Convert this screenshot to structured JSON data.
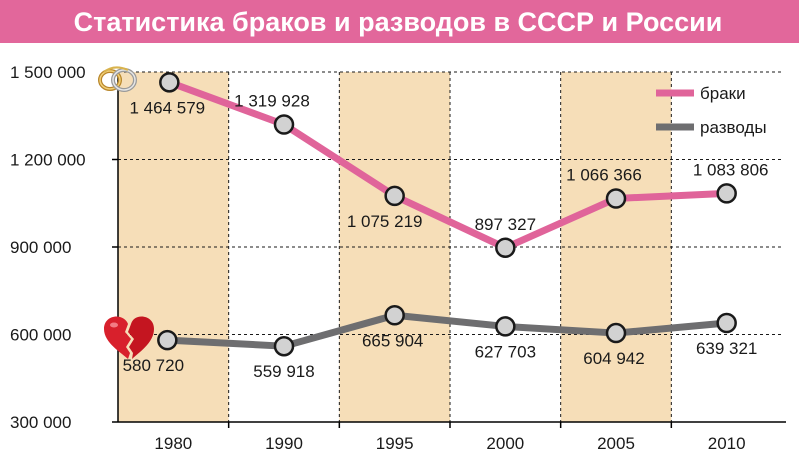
{
  "chart_data": {
    "type": "line",
    "title": "Статистика браков и разводов в СССР и России",
    "categories": [
      "1980",
      "1990",
      "1995",
      "2000",
      "2005",
      "2010"
    ],
    "yticks": [
      "1 500 000",
      "1 200 000",
      "900 000",
      "600 000",
      "300 000"
    ],
    "ytick_values": [
      1500000,
      1200000,
      900000,
      600000,
      300000
    ],
    "ylim": [
      300000,
      1500000
    ],
    "grid": true,
    "legend_position": "top-right",
    "series": [
      {
        "name": "браки",
        "color": "#e0649a",
        "values": [
          1464579,
          1319928,
          1075219,
          897327,
          1066366,
          1083806
        ],
        "labels": [
          "1 464 579",
          "1 319 928",
          "1 075 219",
          "897 327",
          "1 066 366",
          "1 083 806"
        ]
      },
      {
        "name": "разводы",
        "color": "#6e6e70",
        "values": [
          580720,
          559918,
          665904,
          627703,
          604942,
          639321
        ],
        "labels": [
          "580 720",
          "559 918",
          "665 904",
          "627 703",
          "604 942",
          "639 321"
        ]
      }
    ],
    "colors": {
      "title_bar": "#e2679b",
      "title_text": "#ffffff",
      "stripe": "#f6deb8",
      "marker_fill": "#d2d2d2",
      "marker_stroke": "#1a1a1a",
      "axis": "#000000",
      "text": "#1a1a1a"
    },
    "icons": [
      "wedding-rings-icon",
      "broken-heart-icon"
    ]
  }
}
